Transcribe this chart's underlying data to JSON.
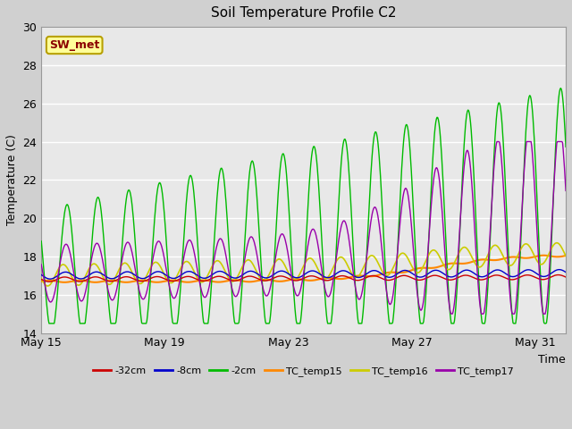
{
  "title": "Soil Temperature Profile C2",
  "xlabel": "Time",
  "ylabel": "Temperature (C)",
  "ylim": [
    14,
    30
  ],
  "yticks": [
    14,
    16,
    18,
    20,
    22,
    24,
    26,
    28,
    30
  ],
  "xtick_labels": [
    "May 15",
    "May 19",
    "May 23",
    "May 27",
    "May 31"
  ],
  "xtick_positions": [
    0,
    4,
    8,
    12,
    16
  ],
  "fig_bg_color": "#d0d0d0",
  "plot_bg_color": "#e8e8e8",
  "annotation_text": "SW_met",
  "annotation_color": "#8B0000",
  "annotation_bg": "#ffff99",
  "annotation_border": "#b8a000",
  "grid_color": "#ffffff",
  "line_colors": {
    "neg32cm": "#cc0000",
    "neg8cm": "#0000cc",
    "neg2cm": "#00bb00",
    "TC_temp15": "#ff8800",
    "TC_temp16": "#cccc00",
    "TC_temp17": "#9900aa"
  },
  "legend_labels": [
    "-32cm",
    "-8cm",
    "-2cm",
    "TC_temp15",
    "TC_temp16",
    "TC_temp17"
  ]
}
